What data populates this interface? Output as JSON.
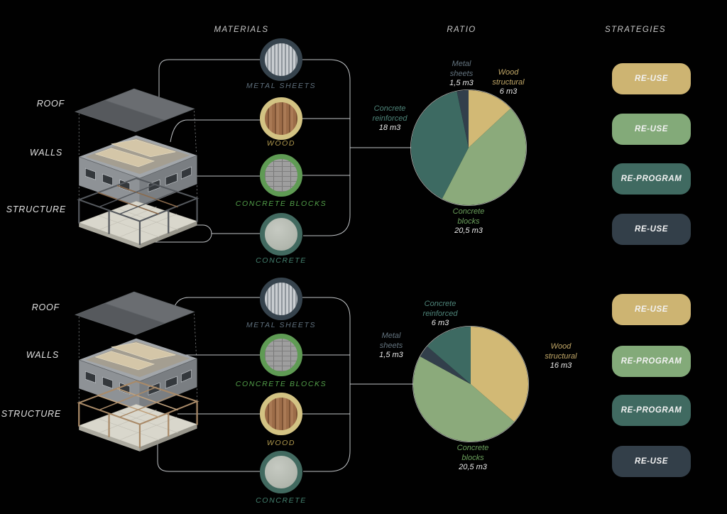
{
  "headers": {
    "materials": "MATERIALS",
    "ratio": "RATIO",
    "strategies": "STRATEGIES"
  },
  "palette": {
    "tan": "#cdb472",
    "green": "#83aa79",
    "teal": "#406a61",
    "slate": "#333f49",
    "line": "#cfd3d6"
  },
  "sections": [
    {
      "layers": [
        {
          "label": "ROOF"
        },
        {
          "label": "WALLS"
        },
        {
          "label": "STRUCTURE"
        }
      ],
      "materials": [
        {
          "label": "METAL SHEETS",
          "border_color": "#36434d",
          "label_color": "#5f707d",
          "texture": "metal"
        },
        {
          "label": "WOOD",
          "border_color": "#d3c383",
          "label_color": "#b39b4e",
          "texture": "wood"
        },
        {
          "label": "CONCRETE BLOCKS",
          "border_color": "#5f9b54",
          "label_color": "#53a04a",
          "texture": "blocks"
        },
        {
          "label": "CONCRETE",
          "border_color": "#426a60",
          "label_color": "#44806f",
          "texture": "concrete"
        }
      ],
      "strategies": [
        {
          "label": "RE-USE",
          "color": "#cdb472"
        },
        {
          "label": "RE-USE",
          "color": "#83aa79"
        },
        {
          "label": "RE-PROGRAM",
          "color": "#406a61"
        },
        {
          "label": "RE-USE",
          "color": "#333f49"
        }
      ]
    },
    {
      "layers": [
        {
          "label": "ROOF"
        },
        {
          "label": "WALLS"
        },
        {
          "label": "STRUCTURE"
        }
      ],
      "materials": [
        {
          "label": "METAL SHEETS",
          "border_color": "#36434d",
          "label_color": "#5f707d",
          "texture": "metal"
        },
        {
          "label": "CONCRETE BLOCKS",
          "border_color": "#5f9b54",
          "label_color": "#53a04a",
          "texture": "blocks"
        },
        {
          "label": "WOOD",
          "border_color": "#d3c383",
          "label_color": "#b39b4e",
          "texture": "wood"
        },
        {
          "label": "CONCRETE",
          "border_color": "#426a60",
          "label_color": "#44806f",
          "texture": "concrete"
        }
      ],
      "strategies": [
        {
          "label": "RE-USE",
          "color": "#cdb472"
        },
        {
          "label": "RE-PROGRAM",
          "color": "#83aa79"
        },
        {
          "label": "RE-PROGRAM",
          "color": "#406a61"
        },
        {
          "label": "RE-USE",
          "color": "#333f49"
        }
      ]
    }
  ],
  "chart_data": [
    {
      "type": "pie",
      "title": "RATIO",
      "units": "m3",
      "start_angle_deg": 0,
      "direction": "clockwise",
      "slices": [
        {
          "material": "Wood structural",
          "lines": [
            "Wood",
            "structural"
          ],
          "volume": 6,
          "value": "6 m3",
          "color": "#d2b975",
          "label_color": "#c2a868"
        },
        {
          "material": "Concrete blocks",
          "lines": [
            "Concrete",
            "blocks"
          ],
          "volume": 20.5,
          "value": "20,5 m3",
          "color": "#8baa7b",
          "label_color": "#6ba05c"
        },
        {
          "material": "Concrete reinforced",
          "lines": [
            "Concrete",
            "reinforced"
          ],
          "volume": 18,
          "value": "18 m3",
          "color": "#3d6a62",
          "label_color": "#4f857a"
        },
        {
          "material": "Metal sheets",
          "lines": [
            "Metal",
            "sheets"
          ],
          "volume": 1.5,
          "value": "1,5 m3",
          "color": "#323f4b",
          "label_color": "#64747f"
        }
      ]
    },
    {
      "type": "pie",
      "title": "RATIO",
      "units": "m3",
      "start_angle_deg": 0,
      "direction": "clockwise",
      "slices": [
        {
          "material": "Wood structural",
          "lines": [
            "Wood",
            "structural"
          ],
          "volume": 16,
          "value": "16 m3",
          "color": "#d2b975",
          "label_color": "#c2a868"
        },
        {
          "material": "Concrete blocks",
          "lines": [
            "Concrete",
            "blocks"
          ],
          "volume": 20.5,
          "value": "20,5 m3",
          "color": "#8baa7b",
          "label_color": "#6ba05c"
        },
        {
          "material": "Metal sheets",
          "lines": [
            "Metal",
            "sheets"
          ],
          "volume": 1.5,
          "value": "1,5 m3",
          "color": "#323f4b",
          "label_color": "#64747f"
        },
        {
          "material": "Concrete reinforced",
          "lines": [
            "Concrete",
            "reinforced"
          ],
          "volume": 6,
          "value": "6 m3",
          "color": "#3d6a62",
          "label_color": "#4f857a"
        }
      ]
    }
  ]
}
